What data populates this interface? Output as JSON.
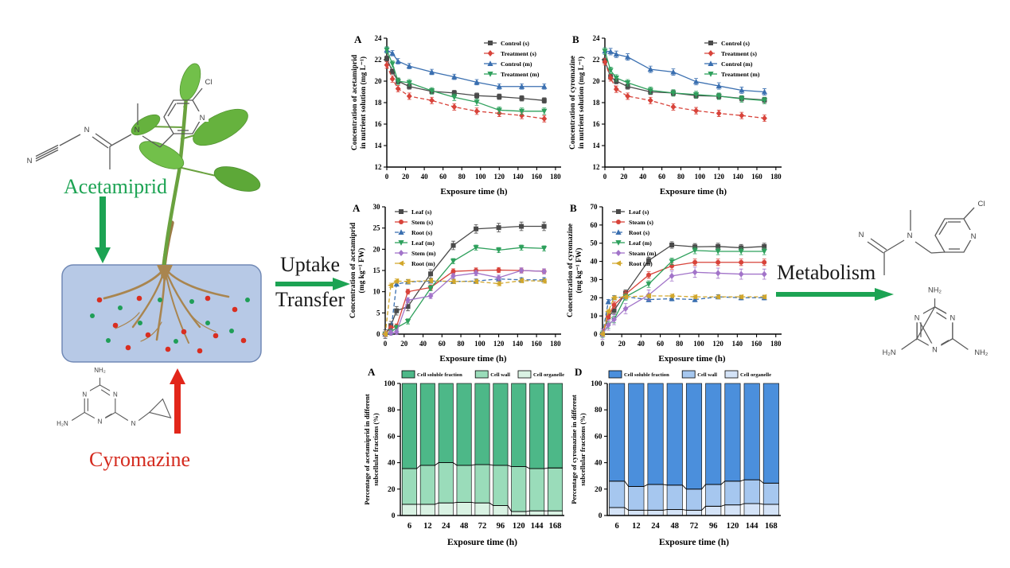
{
  "scene": {
    "acetamiprid_label": "Acetamiprid",
    "cyromazine_label": "Cyromazine",
    "uptake_label": "Uptake",
    "transfer_label": "Transfer",
    "metabolism_label": "Metabolism",
    "colors": {
      "acetamiprid_text": "#1ca353",
      "cyromazine_text": "#d42a1e",
      "uptake_arrow": "#1ca353",
      "metabolism_arrow": "#1ca353",
      "acetamiprid_down_arrow": "#1ca353",
      "cyromazine_up_arrow": "#e2261a",
      "container_fill": "#b7c9e6",
      "dot_red": "#d92e20",
      "dot_green": "#1f9e57"
    }
  },
  "molecules": {
    "acetamiprid": {
      "atoms": [
        "N",
        "N",
        "N",
        "N",
        "Cl"
      ]
    },
    "cyromazine": {
      "atoms": [
        "NH₂",
        "N",
        "N",
        "N",
        "H₂N",
        "N"
      ]
    },
    "metabolite": {
      "atoms": [
        "N",
        "N",
        "N",
        "Cl"
      ]
    },
    "melamine": {
      "atoms": [
        "NH₂",
        "N",
        "N",
        "N",
        "H₂N",
        "NH₂"
      ]
    }
  },
  "chart_data": [
    {
      "id": "acetamiprid-solution",
      "panel": "A",
      "type": "line",
      "xlabel": "Exposure time (h)",
      "ylabel": [
        "Concentration of acetamiprid",
        "in nutrient solution (mg L⁻¹)"
      ],
      "xlim": [
        0,
        186
      ],
      "ylim": [
        12,
        24
      ],
      "xticks": [
        0,
        20,
        40,
        60,
        80,
        100,
        120,
        140,
        160,
        180
      ],
      "yticks": [
        12,
        14,
        16,
        18,
        20,
        22,
        24
      ],
      "x": [
        0,
        6,
        12,
        24,
        48,
        72,
        96,
        120,
        144,
        168
      ],
      "legend_pos": "tr",
      "grid": false,
      "series": [
        {
          "name": "Control (s)",
          "color": "#4a4a4a",
          "marker": "square",
          "err": 0.25,
          "values": [
            22.1,
            20.9,
            20.0,
            19.5,
            19.05,
            18.9,
            18.65,
            18.55,
            18.4,
            18.2
          ]
        },
        {
          "name": "Treatment (s)",
          "color": "#d8433a",
          "marker": "diamond",
          "dash": true,
          "err": 0.3,
          "values": [
            21.5,
            20.2,
            19.3,
            18.6,
            18.2,
            17.6,
            17.2,
            17.0,
            16.8,
            16.5
          ]
        },
        {
          "name": "Control (m)",
          "color": "#3a6fb0",
          "marker": "triangle",
          "err": 0.25,
          "values": [
            22.9,
            22.6,
            21.85,
            21.4,
            20.85,
            20.4,
            19.9,
            19.5,
            19.5,
            19.5
          ]
        },
        {
          "name": "Treatment (m)",
          "color": "#2ea05c",
          "marker": "triangle-down",
          "err": 0.3,
          "values": [
            22.9,
            21.6,
            20.0,
            19.85,
            19.1,
            18.5,
            18.05,
            17.3,
            17.2,
            17.2
          ]
        }
      ]
    },
    {
      "id": "cyromazine-solution",
      "panel": "B",
      "type": "line",
      "xlabel": "Exposure time (h)",
      "ylabel": [
        "Concentration of cyromazine",
        "in nutrient solution (mg L⁻¹)"
      ],
      "xlim": [
        0,
        186
      ],
      "ylim": [
        12,
        24
      ],
      "xticks": [
        0,
        20,
        40,
        60,
        80,
        100,
        120,
        140,
        160,
        180
      ],
      "yticks": [
        12,
        14,
        16,
        18,
        20,
        22,
        24
      ],
      "x": [
        0,
        6,
        12,
        24,
        48,
        72,
        96,
        120,
        144,
        168
      ],
      "legend_pos": "tr",
      "grid": false,
      "series": [
        {
          "name": "Control (s)",
          "color": "#4a4a4a",
          "marker": "square",
          "err": 0.25,
          "values": [
            21.9,
            20.4,
            20.0,
            19.5,
            19.0,
            18.9,
            18.65,
            18.6,
            18.4,
            18.25
          ]
        },
        {
          "name": "Treatment (s)",
          "color": "#d8433a",
          "marker": "diamond",
          "dash": true,
          "err": 0.3,
          "values": [
            21.8,
            20.3,
            19.25,
            18.6,
            18.2,
            17.6,
            17.25,
            17.0,
            16.8,
            16.55
          ]
        },
        {
          "name": "Control (m)",
          "color": "#3a6fb0",
          "marker": "triangle",
          "err": 0.3,
          "values": [
            22.8,
            22.75,
            22.5,
            22.25,
            21.1,
            20.85,
            19.95,
            19.55,
            19.15,
            19.0
          ]
        },
        {
          "name": "Treatment (m)",
          "color": "#2ea05c",
          "marker": "triangle-down",
          "err": 0.3,
          "values": [
            22.8,
            21.0,
            20.3,
            19.85,
            19.15,
            18.9,
            18.75,
            18.6,
            18.35,
            18.2
          ]
        }
      ]
    },
    {
      "id": "acetamiprid-tissue",
      "panel": "A",
      "type": "line",
      "xlabel": "Exposure time (h)",
      "ylabel": [
        "Concentration of acetamiprid",
        "(mg kg⁻¹ FW)"
      ],
      "xlim": [
        0,
        186
      ],
      "ylim": [
        0,
        30
      ],
      "xticks": [
        0,
        20,
        40,
        60,
        80,
        100,
        120,
        140,
        160,
        180
      ],
      "yticks": [
        0,
        5,
        10,
        15,
        20,
        25,
        30
      ],
      "x": [
        0,
        6,
        12,
        24,
        48,
        72,
        96,
        120,
        144,
        168
      ],
      "legend_pos": "tl",
      "grid": false,
      "series": [
        {
          "name": "Leaf (s)",
          "color": "#4a4a4a",
          "marker": "square",
          "err": 1.0,
          "values": [
            0,
            2.0,
            5.5,
            6.5,
            14.2,
            20.9,
            24.8,
            25.1,
            25.4,
            25.4
          ]
        },
        {
          "name": "Stem (s)",
          "color": "#d8433a",
          "marker": "circle",
          "err": 0.6,
          "values": [
            0,
            1.5,
            1.8,
            10.0,
            11.0,
            14.8,
            15.0,
            15.1,
            15.0,
            14.8
          ]
        },
        {
          "name": "Root (s)",
          "color": "#3a6fb0",
          "marker": "triangle",
          "dash": true,
          "err": 0.5,
          "values": [
            0,
            0.5,
            11.8,
            12.3,
            12.5,
            12.4,
            12.5,
            13.0,
            12.8,
            12.8
          ]
        },
        {
          "name": "Leaf (m)",
          "color": "#2ea05c",
          "marker": "triangle-down",
          "err": 0.6,
          "values": [
            0,
            0.5,
            1.5,
            3.0,
            10.8,
            17.2,
            20.4,
            19.8,
            20.4,
            20.2
          ]
        },
        {
          "name": "Stem (m)",
          "color": "#a274c9",
          "marker": "diamond",
          "err": 0.6,
          "values": [
            0,
            0.3,
            0.5,
            8.0,
            9.0,
            13.7,
            14.4,
            13.3,
            15.0,
            14.8
          ]
        },
        {
          "name": "Root (m)",
          "color": "#d2a72b",
          "marker": "tril",
          "dash": true,
          "err": 0.5,
          "values": [
            0,
            11.5,
            12.5,
            12.4,
            12.6,
            12.4,
            12.4,
            11.9,
            12.6,
            12.5
          ]
        }
      ]
    },
    {
      "id": "cyromazine-tissue",
      "panel": "B",
      "type": "line",
      "xlabel": "Exposure time (h)",
      "ylabel": [
        "Concentration of cyromazine",
        "(mg kg⁻¹ FW)"
      ],
      "xlim": [
        0,
        186
      ],
      "ylim": [
        0,
        70
      ],
      "xticks": [
        0,
        20,
        40,
        60,
        80,
        100,
        120,
        140,
        160,
        180
      ],
      "yticks": [
        0,
        10,
        20,
        30,
        40,
        50,
        60,
        70
      ],
      "x": [
        0,
        6,
        12,
        24,
        48,
        72,
        96,
        120,
        144,
        168
      ],
      "legend_pos": "tl",
      "grid": false,
      "series": [
        {
          "name": "Leaf (s)",
          "color": "#4a4a4a",
          "marker": "square",
          "err": 1.8,
          "values": [
            0,
            9.5,
            13,
            22.5,
            40.5,
            49,
            48,
            48.2,
            47.5,
            48.2
          ]
        },
        {
          "name": "Steam (s)",
          "color": "#d8433a",
          "marker": "circle",
          "err": 1.8,
          "values": [
            0,
            9.5,
            16,
            22,
            32.5,
            37.5,
            39.5,
            39.5,
            39.5,
            39.5
          ]
        },
        {
          "name": "Root (s)",
          "color": "#3a6fb0",
          "marker": "triangle",
          "dash": true,
          "err": 1.2,
          "values": [
            0,
            17.8,
            20,
            20.5,
            19,
            19.5,
            19,
            20.5,
            20,
            20
          ]
        },
        {
          "name": "Leaf (m)",
          "color": "#2ea05c",
          "marker": "triangle-down",
          "err": 1.8,
          "values": [
            0,
            5,
            8,
            20.5,
            27.5,
            40,
            46,
            45.5,
            45.5,
            45.5
          ]
        },
        {
          "name": "Steam (m)",
          "color": "#a274c9",
          "marker": "diamond",
          "err": 2.8,
          "values": [
            0,
            5,
            8,
            14,
            21.5,
            32,
            34,
            33.5,
            33,
            33
          ]
        },
        {
          "name": "Root (m)",
          "color": "#d2a72b",
          "marker": "tril",
          "dash": true,
          "err": 1.0,
          "values": [
            0,
            12.5,
            20,
            20.5,
            21,
            21,
            20.5,
            20.5,
            20.5,
            20.5
          ]
        }
      ]
    },
    {
      "id": "acetamiprid-subcellular",
      "panel": "A",
      "type": "bar",
      "xlabel": "Exposure time (h)",
      "ylabel": [
        "Percentage of acetamiprid in different",
        "subcellular fractions (%)"
      ],
      "categories": [
        "6",
        "12",
        "24",
        "48",
        "72",
        "96",
        "120",
        "144",
        "168"
      ],
      "ylim": [
        0,
        100
      ],
      "yticks": [
        0,
        20,
        40,
        60,
        80,
        100
      ],
      "legend_order": [
        2,
        1,
        0
      ],
      "series": [
        {
          "name": "Cell organelle",
          "color": "#d9f2e3",
          "values": [
            8.5,
            8.5,
            9.5,
            10,
            9.5,
            7.5,
            3,
            3.5,
            3.5
          ]
        },
        {
          "name": "Cell wall",
          "color": "#9adcba",
          "values": [
            27,
            29.5,
            30.5,
            28,
            29,
            30.5,
            34,
            32,
            32.5
          ]
        },
        {
          "name": "Cell soluble fraction",
          "color": "#4db888",
          "values": [
            64.5,
            62,
            60,
            62,
            61.5,
            62,
            63,
            64.5,
            64
          ]
        }
      ]
    },
    {
      "id": "cyromazine-subcellular",
      "panel": "D",
      "type": "bar",
      "xlabel": "Exposure time (h)",
      "ylabel": [
        "Percentage of cyromazine in different",
        "subcellular fractions (%)"
      ],
      "categories": [
        "6",
        "12",
        "24",
        "48",
        "72",
        "96",
        "120",
        "144",
        "168"
      ],
      "ylim": [
        0,
        100
      ],
      "yticks": [
        0,
        20,
        40,
        60,
        80,
        100
      ],
      "legend_order": [
        2,
        1,
        0
      ],
      "series": [
        {
          "name": "Cell organelle",
          "color": "#d4e3f7",
          "values": [
            6,
            4,
            4,
            4.5,
            4,
            7,
            8,
            9,
            8.5
          ]
        },
        {
          "name": "Cell wall",
          "color": "#a6c7ef",
          "values": [
            20,
            18,
            19.5,
            18.5,
            16,
            16.5,
            18,
            18,
            16
          ]
        },
        {
          "name": "Cell soluble fraction",
          "color": "#4b8fdc",
          "values": [
            74,
            78,
            76.5,
            77,
            80,
            76.5,
            74,
            73,
            75.5
          ]
        }
      ]
    }
  ]
}
